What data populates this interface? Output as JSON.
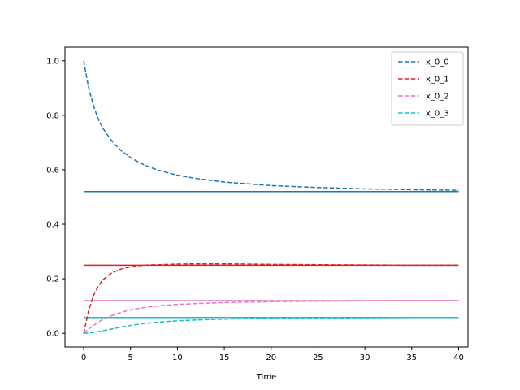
{
  "chart_data": {
    "type": "line",
    "title": "",
    "xlabel": "Time",
    "ylabel": "",
    "xlim": [
      -2,
      41
    ],
    "ylim": [
      -0.05,
      1.05
    ],
    "xticks": [
      0,
      5,
      10,
      15,
      20,
      25,
      30,
      35,
      40
    ],
    "yticks": [
      0.0,
      0.2,
      0.4,
      0.6,
      0.8,
      1.0
    ],
    "xtick_labels": [
      "0",
      "5",
      "10",
      "15",
      "20",
      "25",
      "30",
      "35",
      "40"
    ],
    "ytick_labels": [
      "0.0",
      "0.2",
      "0.4",
      "0.6",
      "0.8",
      "1.0"
    ],
    "grid": false,
    "legend_position": "top-right",
    "x": [
      0,
      0.5,
      1,
      1.5,
      2,
      3,
      4,
      5,
      6,
      7,
      8,
      10,
      12,
      15,
      20,
      25,
      30,
      35,
      40
    ],
    "series": [
      {
        "name": "x_0_0",
        "style": "dashed",
        "color": "#1f77b4",
        "values": [
          1.0,
          0.905,
          0.84,
          0.79,
          0.755,
          0.705,
          0.67,
          0.645,
          0.625,
          0.61,
          0.598,
          0.58,
          0.568,
          0.555,
          0.542,
          0.535,
          0.53,
          0.527,
          0.525
        ]
      },
      {
        "name": "x_0_1",
        "style": "dashed",
        "color": "#d62728",
        "values": [
          0.0,
          0.08,
          0.135,
          0.17,
          0.195,
          0.222,
          0.236,
          0.244,
          0.249,
          0.251,
          0.252,
          0.254,
          0.255,
          0.255,
          0.253,
          0.252,
          0.251,
          0.25,
          0.25
        ]
      },
      {
        "name": "x_0_2",
        "style": "dashed",
        "color": "#e377c2",
        "values": [
          0.0,
          0.015,
          0.028,
          0.04,
          0.05,
          0.065,
          0.077,
          0.086,
          0.092,
          0.097,
          0.101,
          0.106,
          0.109,
          0.113,
          0.116,
          0.118,
          0.119,
          0.12,
          0.12
        ]
      },
      {
        "name": "x_0_3",
        "style": "dashed",
        "color": "#17becf",
        "values": [
          0.0,
          0.001,
          0.003,
          0.006,
          0.009,
          0.016,
          0.023,
          0.029,
          0.034,
          0.038,
          0.041,
          0.046,
          0.049,
          0.052,
          0.055,
          0.056,
          0.057,
          0.058,
          0.058
        ]
      }
    ],
    "reference_lines": [
      {
        "y": 0.52,
        "color": "#1f77b4"
      },
      {
        "y": 0.25,
        "color": "#d62728"
      },
      {
        "y": 0.12,
        "color": "#e377c2"
      },
      {
        "y": 0.058,
        "color": "#17becf"
      }
    ]
  }
}
